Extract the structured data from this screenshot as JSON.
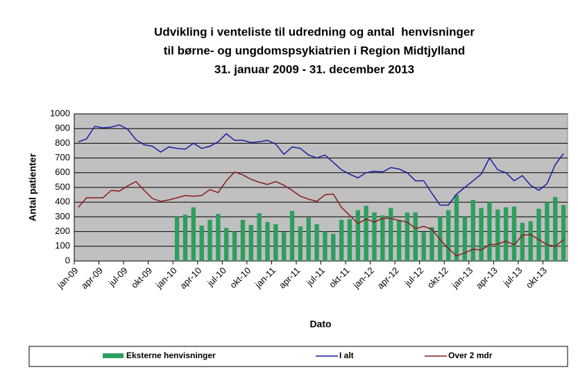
{
  "chart_data": {
    "type": "bar_line",
    "title": [
      "Udvikling i venteliste til udredning og antal  henvisninger",
      "til børne- og ungdomspsykiatrien i Region Midtjylland",
      "31. januar 2009 - 31. december 2013"
    ],
    "ylabel": "Antal patienter",
    "xlabel": "Dato",
    "categories": [
      "jan-09",
      null,
      null,
      "apr-09",
      null,
      null,
      "jul-09",
      null,
      null,
      "okt-09",
      null,
      null,
      "jan-10",
      null,
      null,
      "apr-10",
      null,
      null,
      "jul-10",
      null,
      null,
      "okt-10",
      null,
      null,
      "jan-11",
      null,
      null,
      "apr-11",
      null,
      null,
      "jul-11",
      null,
      null,
      "okt-11",
      null,
      null,
      "jan-12",
      null,
      null,
      "apr-12",
      null,
      null,
      "jul-12",
      null,
      null,
      "okt-12",
      null,
      null,
      "jan-13",
      null,
      null,
      "apr-13",
      null,
      null,
      "jul-13",
      null,
      null,
      "okt-13",
      null,
      null
    ],
    "series": [
      {
        "name": "Eksterne henvisninger",
        "kind": "bar",
        "color": "#2e9e5e",
        "values": [
          null,
          null,
          null,
          null,
          null,
          null,
          null,
          null,
          null,
          null,
          null,
          null,
          300,
          315,
          365,
          240,
          280,
          320,
          225,
          200,
          280,
          245,
          325,
          265,
          250,
          195,
          340,
          235,
          295,
          250,
          200,
          185,
          280,
          285,
          345,
          375,
          330,
          310,
          360,
          280,
          330,
          330,
          195,
          230,
          300,
          345,
          450,
          300,
          415,
          360,
          400,
          350,
          365,
          370,
          260,
          270,
          355,
          400,
          435,
          380
        ]
      },
      {
        "name": "I alt",
        "kind": "line",
        "color": "#1a1aa0",
        "values": [
          810,
          830,
          915,
          905,
          910,
          925,
          895,
          825,
          790,
          780,
          740,
          775,
          765,
          760,
          800,
          765,
          780,
          810,
          865,
          820,
          820,
          805,
          810,
          820,
          795,
          725,
          775,
          765,
          720,
          700,
          720,
          670,
          620,
          590,
          565,
          600,
          610,
          605,
          635,
          625,
          600,
          545,
          545,
          460,
          380,
          380,
          455,
          500,
          545,
          590,
          700,
          620,
          600,
          545,
          580,
          515,
          480,
          525,
          655,
          730
        ]
      },
      {
        "name": "Over 2 mdr",
        "kind": "line",
        "color": "#8b1a1a",
        "values": [
          365,
          430,
          430,
          430,
          480,
          475,
          510,
          540,
          480,
          425,
          405,
          415,
          430,
          445,
          440,
          445,
          485,
          465,
          545,
          605,
          585,
          555,
          535,
          520,
          540,
          515,
          480,
          440,
          420,
          405,
          450,
          455,
          365,
          310,
          255,
          285,
          265,
          290,
          290,
          275,
          265,
          220,
          235,
          215,
          145,
          85,
          35,
          55,
          80,
          75,
          110,
          115,
          135,
          110,
          175,
          180,
          145,
          110,
          100,
          145
        ]
      }
    ],
    "ylim": [
      0,
      1000
    ],
    "yticks": [
      0,
      100,
      200,
      300,
      400,
      500,
      600,
      700,
      800,
      900,
      1000
    ],
    "grid": true,
    "legend": "bottom"
  }
}
